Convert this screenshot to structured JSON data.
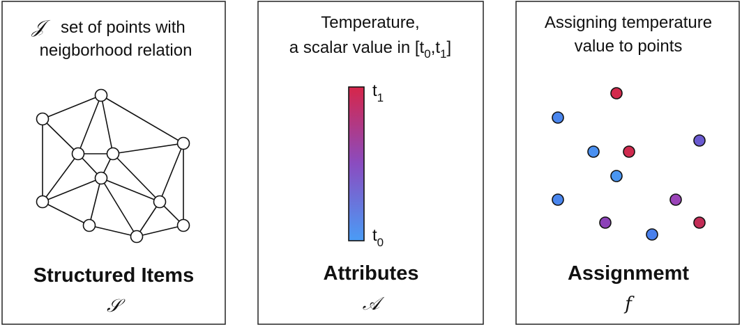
{
  "panels": [
    {
      "caption": {
        "symbol": "𝒥",
        "line1": "set of points with",
        "line2": "neigborhood relation"
      },
      "title": "Structured Items",
      "symbol": "𝒮"
    },
    {
      "caption": {
        "line1": "Temperature,",
        "line2": [
          "a scalar value in [t",
          "0",
          ",t",
          "1",
          "]"
        ]
      },
      "colorbar": {
        "top": [
          "t",
          "1"
        ],
        "bottom": [
          "t",
          "0"
        ]
      },
      "title": "Attributes",
      "symbol": "𝒜"
    },
    {
      "caption": {
        "line1": "Assigning temperature",
        "line2": "value to points"
      },
      "title": "Assignmemt",
      "symbol": "f"
    }
  ]
}
